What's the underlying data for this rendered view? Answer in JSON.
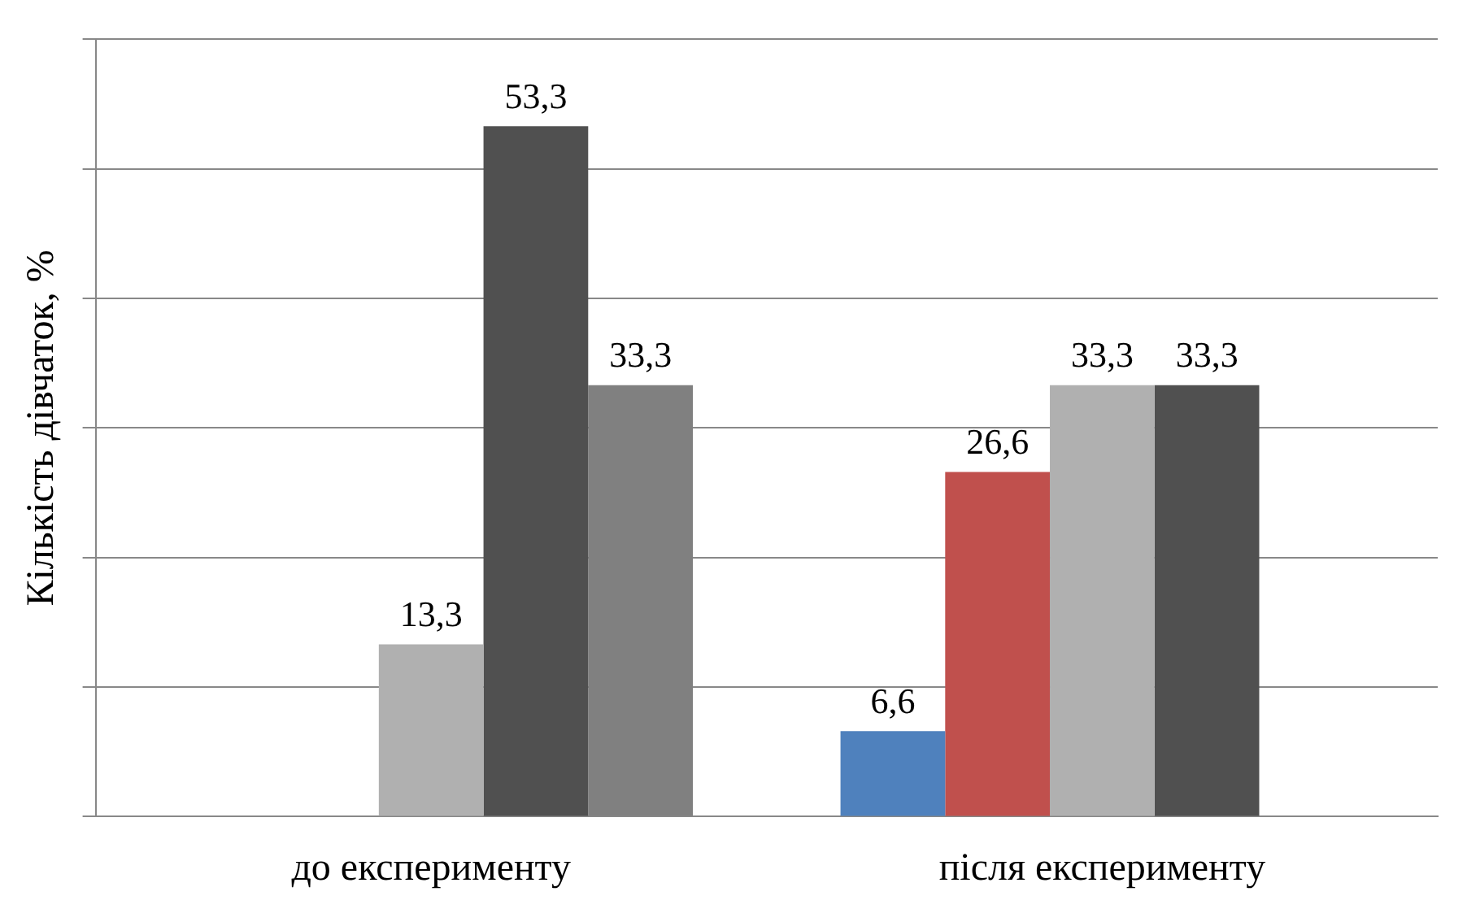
{
  "chart_data": {
    "type": "bar",
    "ylabel": "Кількість дівчаток, %",
    "categories": [
      "до експерименту",
      "після експерименту"
    ],
    "ylim": [
      0,
      60
    ],
    "yticks": [
      {
        "value": 0,
        "label": null
      },
      {
        "value": 10,
        "label": null
      },
      {
        "value": 20,
        "label": null
      },
      {
        "value": 30,
        "label": null
      },
      {
        "value": 40,
        "label": null
      },
      {
        "value": 50,
        "label": null
      },
      {
        "value": 60,
        "label": null
      }
    ],
    "grid": "y",
    "legend": false,
    "series": [
      {
        "color": "#4f81bd",
        "values": [
          null,
          6.6
        ],
        "value_labels": [
          null,
          "6,6"
        ]
      },
      {
        "color": "#c0504d",
        "values": [
          null,
          26.6
        ],
        "value_labels": [
          null,
          "26,6"
        ]
      },
      {
        "color": "#b0b0b0",
        "values": [
          13.3,
          33.3
        ],
        "value_labels": [
          "13,3",
          "33,3"
        ]
      },
      {
        "color": "#505050",
        "values": [
          53.3,
          33.3
        ],
        "value_labels": [
          "53,3",
          "33,3"
        ]
      },
      {
        "color": "#808080",
        "values": [
          33.3,
          null
        ],
        "value_labels": [
          "33,3",
          null
        ]
      }
    ]
  }
}
